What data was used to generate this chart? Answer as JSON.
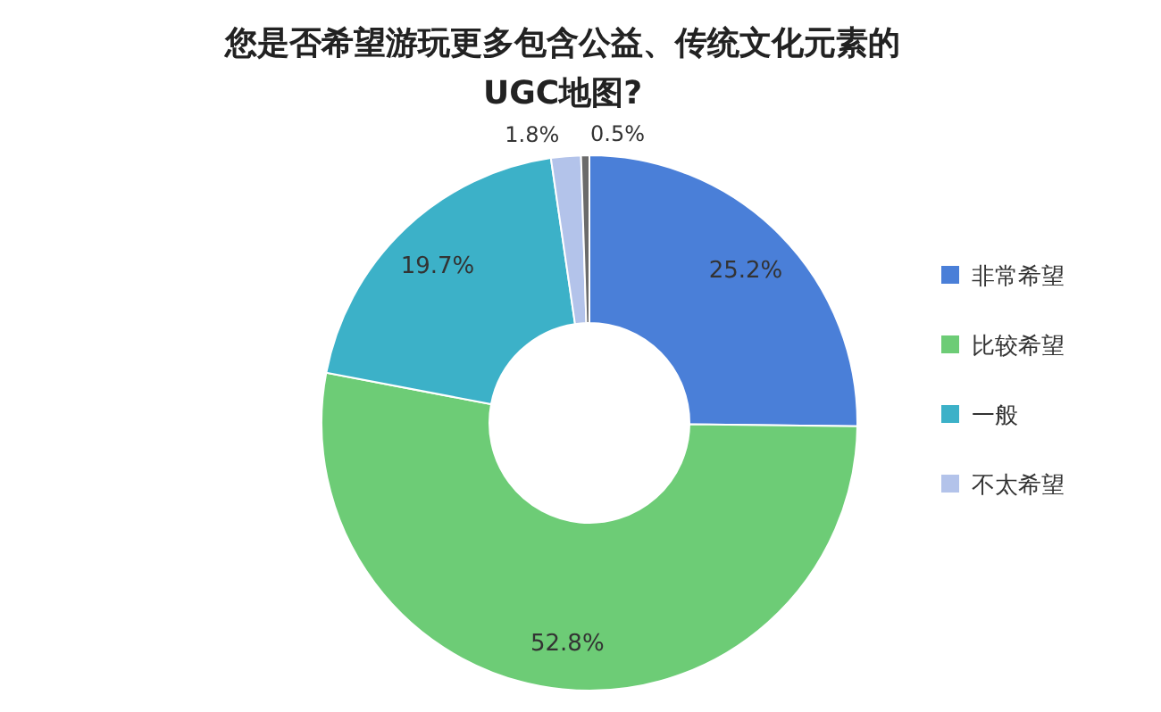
{
  "chart_data": {
    "type": "donut",
    "title": "您是否希望游玩更多包含公益、传统文化元素的UGC地图?",
    "categories": [
      "非常希望",
      "比较希望",
      "一般",
      "不太希望",
      null
    ],
    "values": [
      25.2,
      52.8,
      19.7,
      1.8,
      0.5
    ],
    "value_labels": [
      "25.2%",
      "52.8%",
      "19.7%",
      "1.8%",
      "0.5%"
    ],
    "colors": [
      "#4a7fd8",
      "#6dcc76",
      "#3cb1c8",
      "#b3c3ea",
      "#6b6b6b"
    ],
    "legend": "right"
  }
}
